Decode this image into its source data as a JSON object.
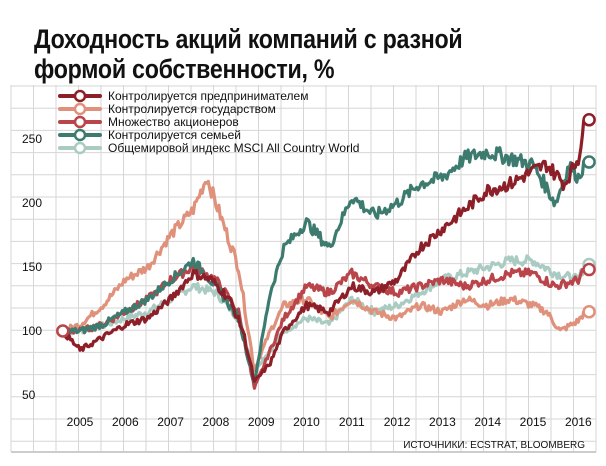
{
  "chart_data": {
    "type": "line",
    "title": "Доходность акций компаний с разной формой собственности, %",
    "source": "ИСТОЧНИКИ: ECSTRAT, BLOOMBERG",
    "xlabel": "",
    "ylabel": "",
    "xlim": [
      2004.5,
      2016.4
    ],
    "ylim": [
      40,
      275
    ],
    "x_ticks": [
      "2005",
      "2006",
      "2007",
      "2008",
      "2009",
      "2010",
      "2011",
      "2012",
      "2013",
      "2014",
      "2015",
      "2016"
    ],
    "y_ticks": [
      50,
      100,
      150,
      200,
      250
    ],
    "grid": true,
    "legend_position": "top-left",
    "series": [
      {
        "name": "Общемировой индекс MSCI All Country World",
        "color": "#a9cbc2",
        "points": [
          [
            2004.62,
            100
          ],
          [
            2005,
            100
          ],
          [
            2005.5,
            104
          ],
          [
            2006,
            110
          ],
          [
            2006.5,
            115
          ],
          [
            2007,
            125
          ],
          [
            2007.5,
            135
          ],
          [
            2008,
            130
          ],
          [
            2008.5,
            110
          ],
          [
            2008.85,
            70
          ],
          [
            2009.2,
            85
          ],
          [
            2009.5,
            100
          ],
          [
            2010,
            110
          ],
          [
            2010.5,
            105
          ],
          [
            2011,
            125
          ],
          [
            2011.5,
            115
          ],
          [
            2012,
            120
          ],
          [
            2012.5,
            130
          ],
          [
            2013,
            140
          ],
          [
            2013.5,
            145
          ],
          [
            2014,
            150
          ],
          [
            2014.5,
            155
          ],
          [
            2015,
            155
          ],
          [
            2015.5,
            145
          ],
          [
            2016,
            140
          ],
          [
            2016.15,
            152
          ]
        ]
      },
      {
        "name": "Контролируется государством",
        "color": "#e0917b",
        "points": [
          [
            2004.62,
            100
          ],
          [
            2005,
            105
          ],
          [
            2005.5,
            120
          ],
          [
            2006,
            140
          ],
          [
            2006.5,
            150
          ],
          [
            2007,
            175
          ],
          [
            2007.5,
            195
          ],
          [
            2007.8,
            220
          ],
          [
            2008.1,
            190
          ],
          [
            2008.5,
            150
          ],
          [
            2008.85,
            70
          ],
          [
            2009.2,
            100
          ],
          [
            2009.5,
            120
          ],
          [
            2010,
            125
          ],
          [
            2010.5,
            110
          ],
          [
            2011,
            125
          ],
          [
            2011.5,
            115
          ],
          [
            2012,
            110
          ],
          [
            2012.5,
            120
          ],
          [
            2013,
            115
          ],
          [
            2013.5,
            125
          ],
          [
            2014,
            120
          ],
          [
            2014.5,
            125
          ],
          [
            2015,
            120
          ],
          [
            2015.3,
            115
          ],
          [
            2015.6,
            100
          ],
          [
            2016,
            108
          ],
          [
            2016.15,
            115
          ]
        ]
      },
      {
        "name": "Множество акционеров",
        "color": "#b9454b",
        "points": [
          [
            2004.62,
            100
          ],
          [
            2005,
            100
          ],
          [
            2005.5,
            105
          ],
          [
            2006,
            115
          ],
          [
            2006.5,
            125
          ],
          [
            2007,
            140
          ],
          [
            2007.5,
            150
          ],
          [
            2008,
            140
          ],
          [
            2008.5,
            115
          ],
          [
            2008.85,
            55
          ],
          [
            2009.2,
            85
          ],
          [
            2009.5,
            110
          ],
          [
            2010,
            135
          ],
          [
            2010.5,
            130
          ],
          [
            2011,
            145
          ],
          [
            2011.5,
            135
          ],
          [
            2012,
            130
          ],
          [
            2012.5,
            135
          ],
          [
            2013,
            140
          ],
          [
            2013.5,
            135
          ],
          [
            2014,
            140
          ],
          [
            2014.5,
            145
          ],
          [
            2015,
            145
          ],
          [
            2015.5,
            135
          ],
          [
            2016,
            140
          ],
          [
            2016.15,
            148
          ]
        ]
      },
      {
        "name": "Контролируется семьей",
        "color": "#3d7b6f",
        "points": [
          [
            2004.62,
            100
          ],
          [
            2005,
            100
          ],
          [
            2005.5,
            105
          ],
          [
            2006,
            115
          ],
          [
            2006.5,
            125
          ],
          [
            2007,
            140
          ],
          [
            2007.5,
            155
          ],
          [
            2008,
            135
          ],
          [
            2008.5,
            110
          ],
          [
            2008.85,
            60
          ],
          [
            2009.2,
            130
          ],
          [
            2009.5,
            165
          ],
          [
            2010,
            185
          ],
          [
            2010.5,
            165
          ],
          [
            2011,
            205
          ],
          [
            2011.5,
            190
          ],
          [
            2012,
            200
          ],
          [
            2012.5,
            215
          ],
          [
            2013,
            220
          ],
          [
            2013.5,
            235
          ],
          [
            2014,
            240
          ],
          [
            2014.5,
            235
          ],
          [
            2015,
            230
          ],
          [
            2015.5,
            200
          ],
          [
            2015.8,
            230
          ],
          [
            2016,
            220
          ],
          [
            2016.15,
            232
          ]
        ]
      },
      {
        "name": "Контролируется предпринимателем",
        "color": "#8c1f27",
        "points": [
          [
            2004.62,
            100
          ],
          [
            2005,
            85
          ],
          [
            2005.5,
            95
          ],
          [
            2006,
            105
          ],
          [
            2006.5,
            110
          ],
          [
            2007,
            125
          ],
          [
            2007.5,
            145
          ],
          [
            2007.9,
            140
          ],
          [
            2008.3,
            125
          ],
          [
            2008.6,
            100
          ],
          [
            2008.85,
            60
          ],
          [
            2009.2,
            75
          ],
          [
            2009.5,
            100
          ],
          [
            2010,
            120
          ],
          [
            2010.5,
            115
          ],
          [
            2011,
            135
          ],
          [
            2011.5,
            130
          ],
          [
            2012,
            140
          ],
          [
            2012.5,
            165
          ],
          [
            2013,
            180
          ],
          [
            2013.5,
            195
          ],
          [
            2014,
            210
          ],
          [
            2014.5,
            215
          ],
          [
            2015,
            225
          ],
          [
            2015.3,
            230
          ],
          [
            2015.7,
            215
          ],
          [
            2016,
            235
          ],
          [
            2016.15,
            265
          ]
        ]
      }
    ],
    "legend_order": [
      4,
      1,
      2,
      3,
      0
    ]
  }
}
